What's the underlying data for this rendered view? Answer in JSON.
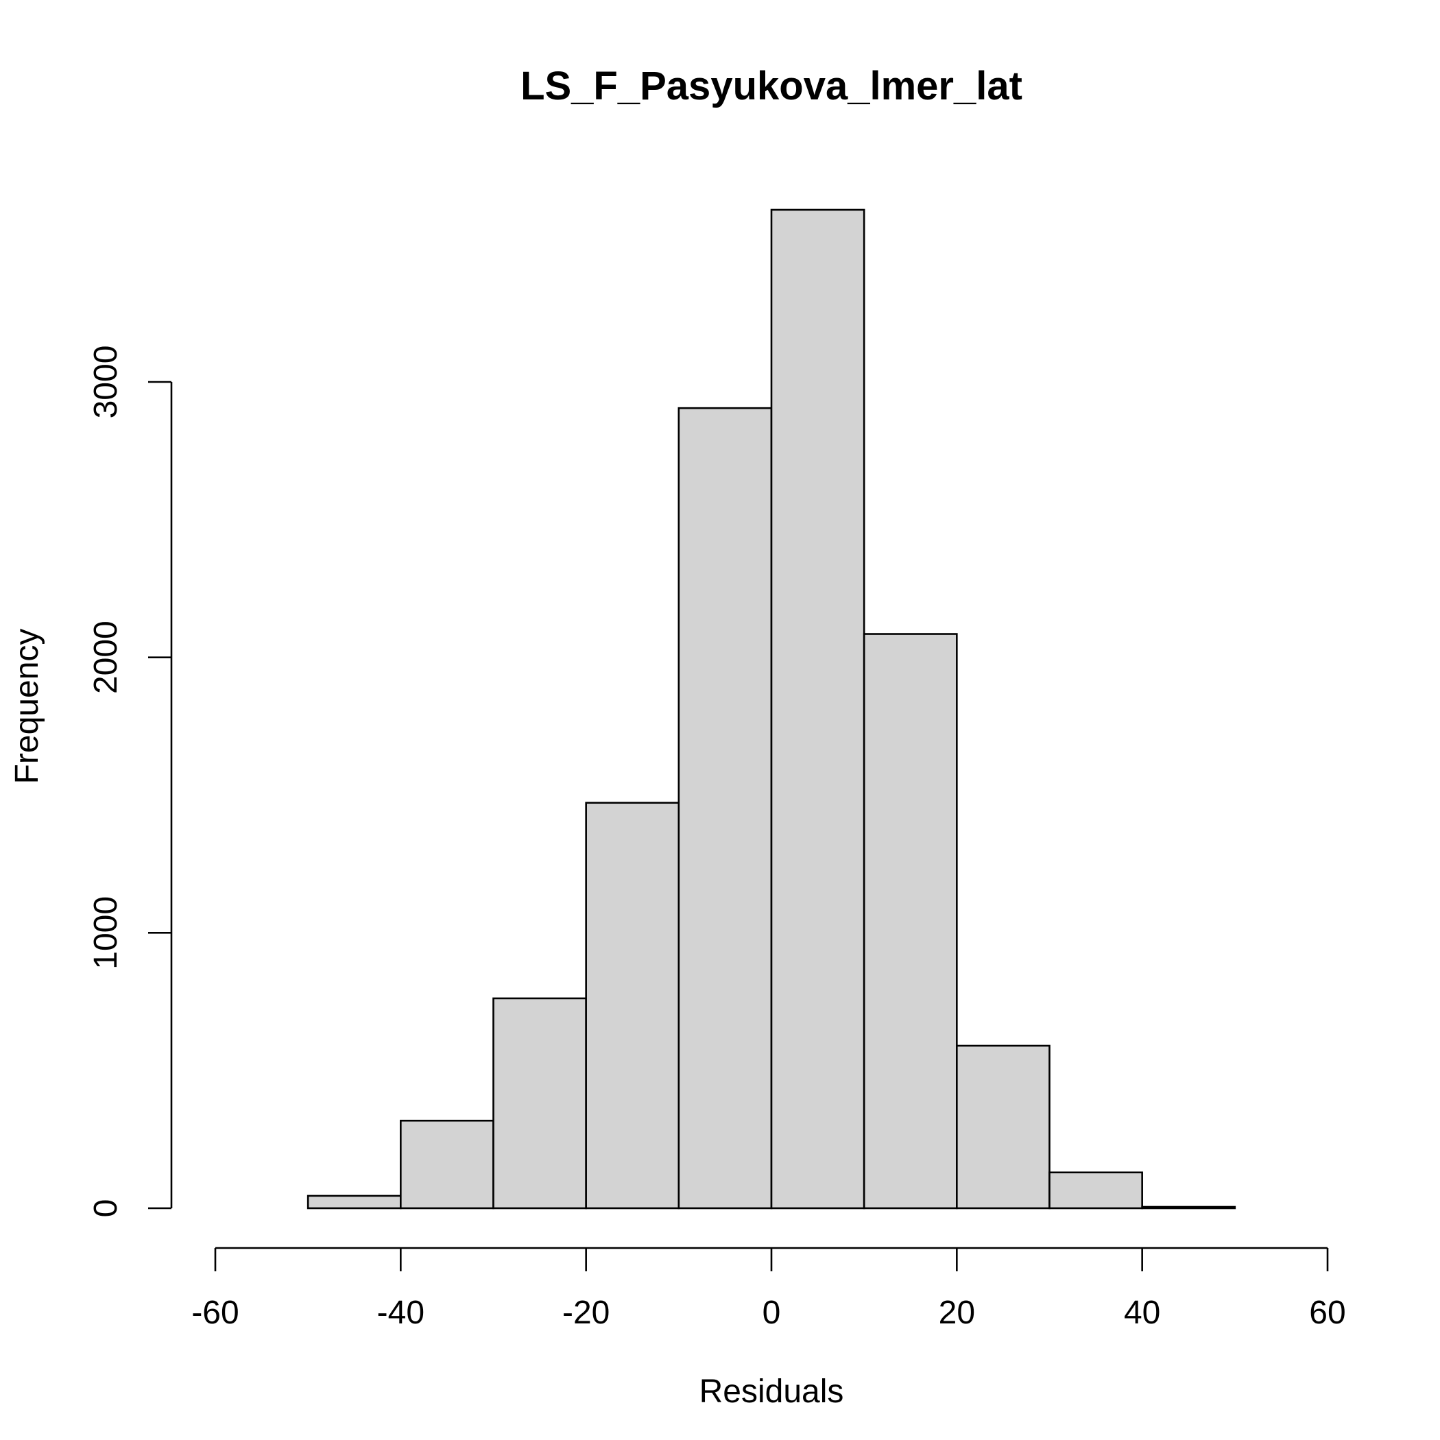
{
  "chart_data": {
    "type": "bar",
    "histogram": true,
    "title": "LS_F_Pasyukova_lmer_lat",
    "xlabel": "Residuals",
    "ylabel": "Frequency",
    "xlim": [
      -60,
      60
    ],
    "ylim": [
      0,
      3800
    ],
    "bin_width": 10,
    "bins": [
      {
        "x0": -60,
        "x1": -50,
        "count": 0
      },
      {
        "x0": -50,
        "x1": -40,
        "count": 45
      },
      {
        "x0": -40,
        "x1": -30,
        "count": 318
      },
      {
        "x0": -30,
        "x1": -20,
        "count": 762
      },
      {
        "x0": -20,
        "x1": -10,
        "count": 1472
      },
      {
        "x0": -10,
        "x1": 0,
        "count": 2905
      },
      {
        "x0": 0,
        "x1": 10,
        "count": 3625
      },
      {
        "x0": 10,
        "x1": 20,
        "count": 2085
      },
      {
        "x0": 20,
        "x1": 30,
        "count": 590
      },
      {
        "x0": 30,
        "x1": 40,
        "count": 130
      },
      {
        "x0": 40,
        "x1": 50,
        "count": 5
      },
      {
        "x0": 50,
        "x1": 60,
        "count": 0
      }
    ],
    "x_ticks": [
      -60,
      -40,
      -20,
      0,
      20,
      40,
      60
    ],
    "x_tick_labels": [
      "-60",
      "-40",
      "-20",
      "0",
      "20",
      "40",
      "60"
    ],
    "y_ticks": [
      0,
      1000,
      2000,
      3000
    ],
    "y_tick_labels": [
      "0",
      "1000",
      "2000",
      "3000"
    ],
    "grid": false,
    "legend": "none",
    "colors": {
      "bar_fill": "#d3d3d3",
      "bar_stroke": "#000000",
      "axis": "#000000",
      "background": "#ffffff"
    }
  }
}
